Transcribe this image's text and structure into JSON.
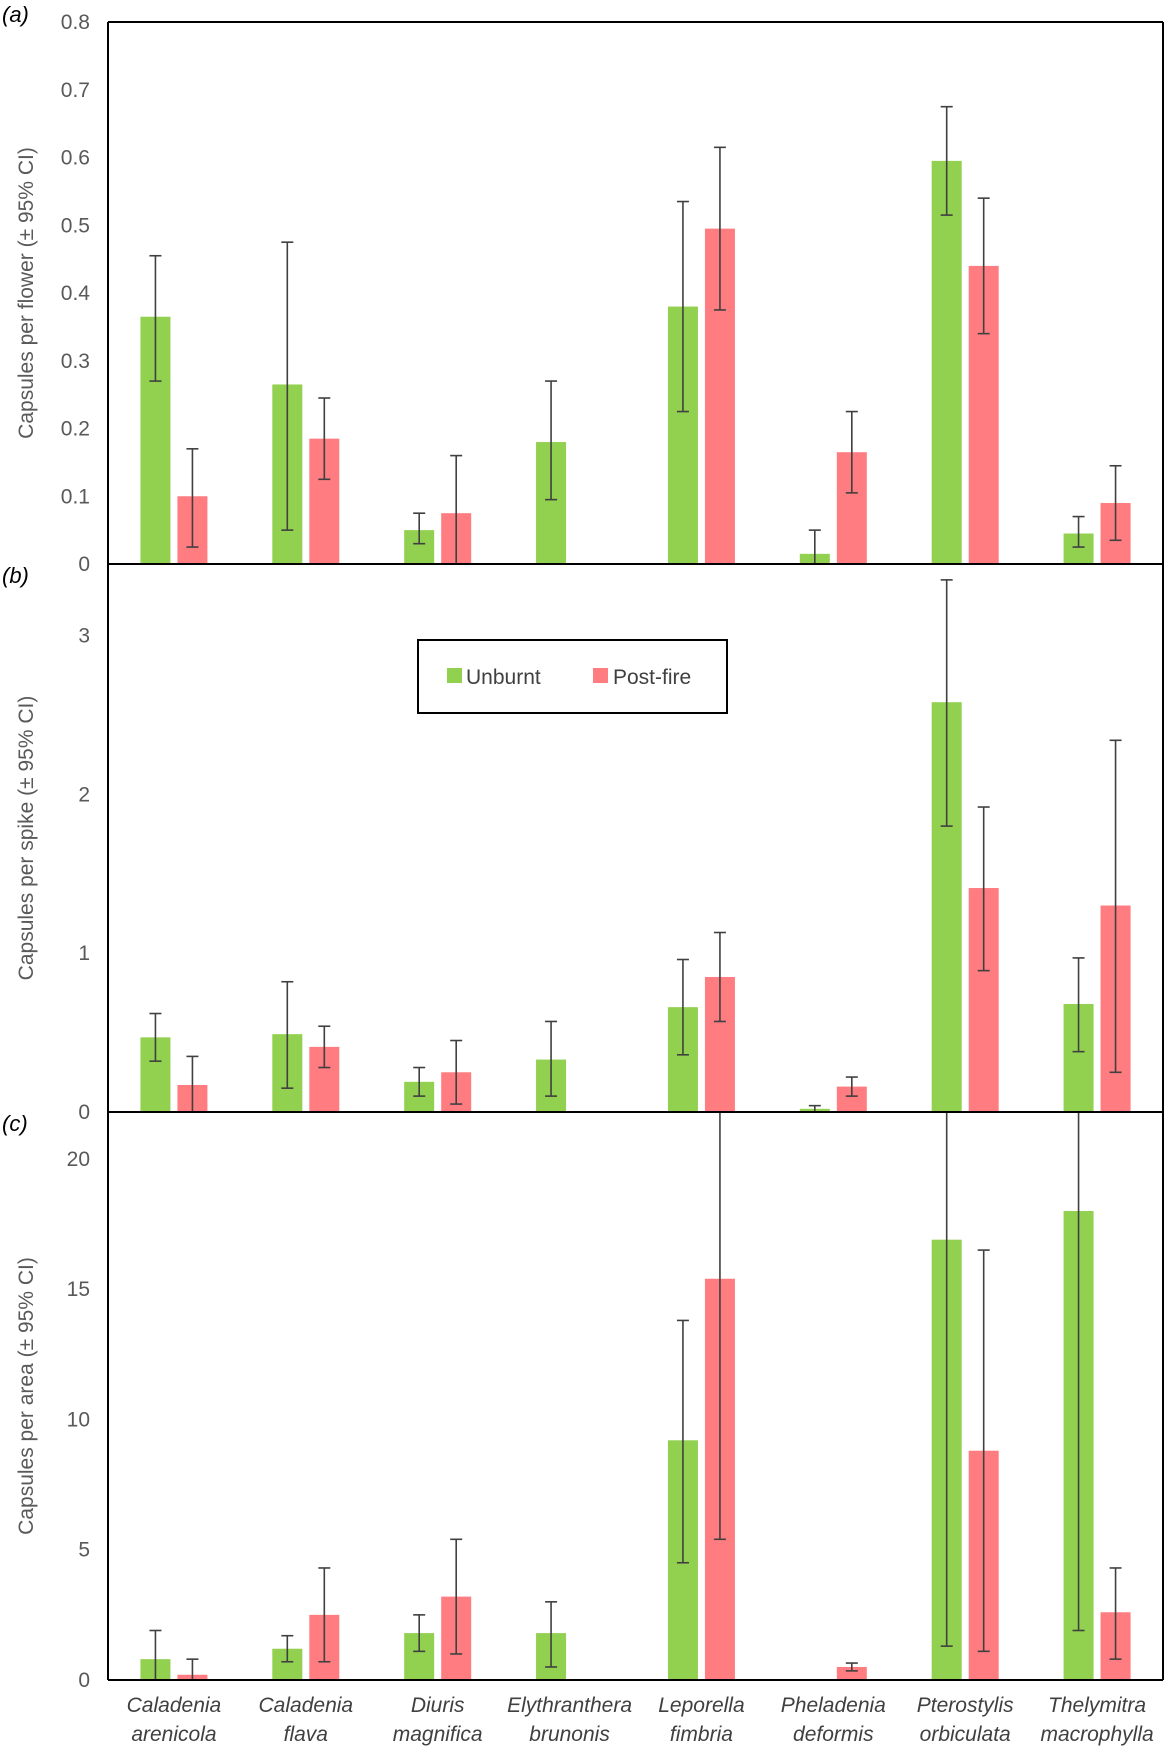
{
  "colors": {
    "unburnt": "#92d050",
    "post_fire": "#ff7c80",
    "error_bar": "#404040",
    "axis": "#000000"
  },
  "legend": {
    "unburnt": "Unburnt",
    "post_fire": "Post-fire"
  },
  "categories_line1": [
    "Caladenia",
    "Caladenia",
    "Diuris",
    "Elythranthera",
    "Leporella",
    "Pheladenia",
    "Pterostylis",
    "Thelymitra"
  ],
  "categories_line2": [
    "arenicola",
    "flava",
    "magnifica",
    "brunonis",
    "fimbria",
    "deformis",
    "orbiculata",
    "macrophylla"
  ],
  "chart_data": [
    {
      "type": "bar",
      "panel": "(a)",
      "ylabel": "Capsules per flower (± 95% CI)",
      "ylim": [
        0,
        0.8
      ],
      "yticks": [
        0,
        0.1,
        0.2,
        0.3,
        0.4,
        0.5,
        0.6,
        0.7,
        0.8
      ],
      "ytick_labels": [
        "0",
        "0.1",
        "0.2",
        "0.3",
        "0.4",
        "0.5",
        "0.6",
        "0.7",
        "0.8"
      ],
      "categories": [
        "Caladenia arenicola",
        "Caladenia flava",
        "Diuris magnifica",
        "Elythranthera brunonis",
        "Leporella fimbria",
        "Pheladenia deformis",
        "Pterostylis orbiculata",
        "Thelymitra macrophylla"
      ],
      "series": [
        {
          "name": "Unburnt",
          "values": [
            0.365,
            0.265,
            0.05,
            0.18,
            0.38,
            0.015,
            0.595,
            0.045
          ],
          "ci_low": [
            0.27,
            0.05,
            0.03,
            0.095,
            0.225,
            0.0,
            0.515,
            0.025
          ],
          "ci_high": [
            0.455,
            0.475,
            0.075,
            0.27,
            0.535,
            0.05,
            0.675,
            0.07
          ]
        },
        {
          "name": "Post-fire",
          "values": [
            0.1,
            0.185,
            0.075,
            0,
            0.495,
            0.165,
            0.44,
            0.09
          ],
          "ci_low": [
            0.025,
            0.125,
            0.0,
            null,
            0.375,
            0.105,
            0.34,
            0.035
          ],
          "ci_high": [
            0.17,
            0.245,
            0.16,
            null,
            0.615,
            0.225,
            0.54,
            0.145
          ]
        }
      ]
    },
    {
      "type": "bar",
      "panel": "(b)",
      "ylabel": "Capsules per spike (± 95% CI)",
      "ylim": [
        0,
        3.45
      ],
      "yticks": [
        0,
        1,
        2,
        3
      ],
      "ytick_labels": [
        "0",
        "1",
        "2",
        "3"
      ],
      "categories": [
        "Caladenia arenicola",
        "Caladenia flava",
        "Diuris magnifica",
        "Elythranthera brunonis",
        "Leporella fimbria",
        "Pheladenia deformis",
        "Pterostylis orbiculata",
        "Thelymitra macrophylla"
      ],
      "series": [
        {
          "name": "Unburnt",
          "values": [
            0.47,
            0.49,
            0.19,
            0.33,
            0.66,
            0.02,
            2.58,
            0.68
          ],
          "ci_low": [
            0.32,
            0.15,
            0.1,
            0.1,
            0.36,
            0.0,
            1.8,
            0.38
          ],
          "ci_high": [
            0.62,
            0.82,
            0.28,
            0.57,
            0.96,
            0.04,
            3.35,
            0.97
          ]
        },
        {
          "name": "Post-fire",
          "values": [
            0.17,
            0.41,
            0.25,
            0,
            0.85,
            0.16,
            1.41,
            1.3
          ],
          "ci_low": [
            0.0,
            0.28,
            0.05,
            null,
            0.57,
            0.1,
            0.89,
            0.25
          ],
          "ci_high": [
            0.35,
            0.54,
            0.45,
            null,
            1.13,
            0.22,
            1.92,
            2.34
          ]
        }
      ]
    },
    {
      "type": "bar",
      "panel": "(c)",
      "ylabel": "Capsules per area (± 95% CI)",
      "ylim": [
        0,
        21.8
      ],
      "yticks": [
        0,
        5,
        10,
        15,
        20
      ],
      "ytick_labels": [
        "0",
        "5",
        "10",
        "15",
        "20"
      ],
      "categories": [
        "Caladenia arenicola",
        "Caladenia flava",
        "Diuris magnifica",
        "Elythranthera brunonis",
        "Leporella fimbria",
        "Pheladenia deformis",
        "Pterostylis orbiculata",
        "Thelymitra macrophylla"
      ],
      "series": [
        {
          "name": "Unburnt",
          "values": [
            0.8,
            1.2,
            1.8,
            1.8,
            9.2,
            0.0,
            16.9,
            18.0
          ],
          "ci_low": [
            0.0,
            0.7,
            1.1,
            0.5,
            4.5,
            null,
            1.3,
            1.9
          ],
          "ci_high": [
            1.9,
            1.7,
            2.5,
            3.0,
            13.8,
            null,
            21.8,
            21.8
          ]
        },
        {
          "name": "Post-fire",
          "values": [
            0.2,
            2.5,
            3.2,
            0,
            15.4,
            0.5,
            8.8,
            2.6
          ],
          "ci_low": [
            0.0,
            0.7,
            1.0,
            null,
            5.4,
            0.35,
            1.1,
            0.8
          ],
          "ci_high": [
            0.8,
            4.3,
            5.4,
            null,
            21.8,
            0.65,
            16.5,
            4.3
          ]
        }
      ]
    }
  ]
}
